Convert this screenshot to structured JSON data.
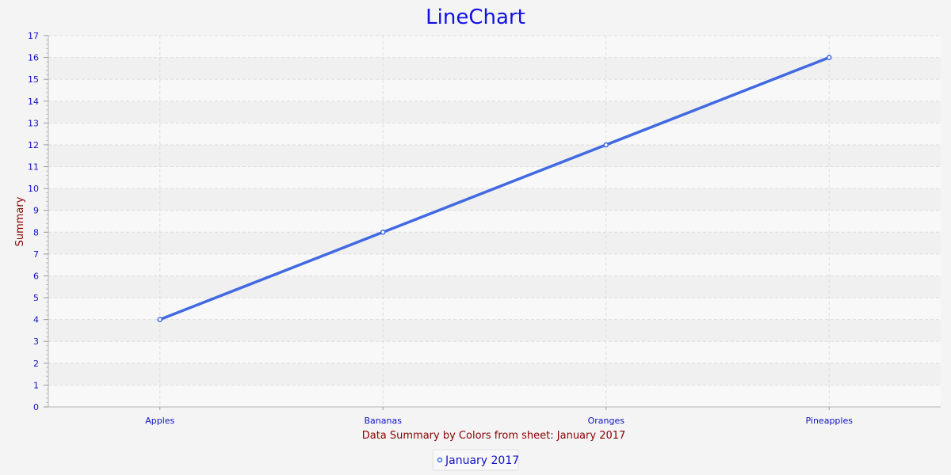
{
  "chart_data": {
    "type": "line",
    "title": "LineChart",
    "xlabel": "Data Summary by Colors from sheet: January 2017",
    "ylabel": "Summary",
    "categories": [
      "Apples",
      "Bananas",
      "Oranges",
      "Pineapples"
    ],
    "series": [
      {
        "name": "January 2017",
        "values": [
          4,
          8,
          12,
          16
        ],
        "color": "#4169e1"
      }
    ],
    "ylim": [
      0,
      17
    ],
    "yticks": [
      "0",
      "1",
      "2",
      "3",
      "4",
      "5",
      "6",
      "7",
      "8",
      "9",
      "10",
      "11",
      "12",
      "13",
      "14",
      "15",
      "16",
      "17"
    ],
    "grid": true,
    "legend_position": "bottom"
  }
}
